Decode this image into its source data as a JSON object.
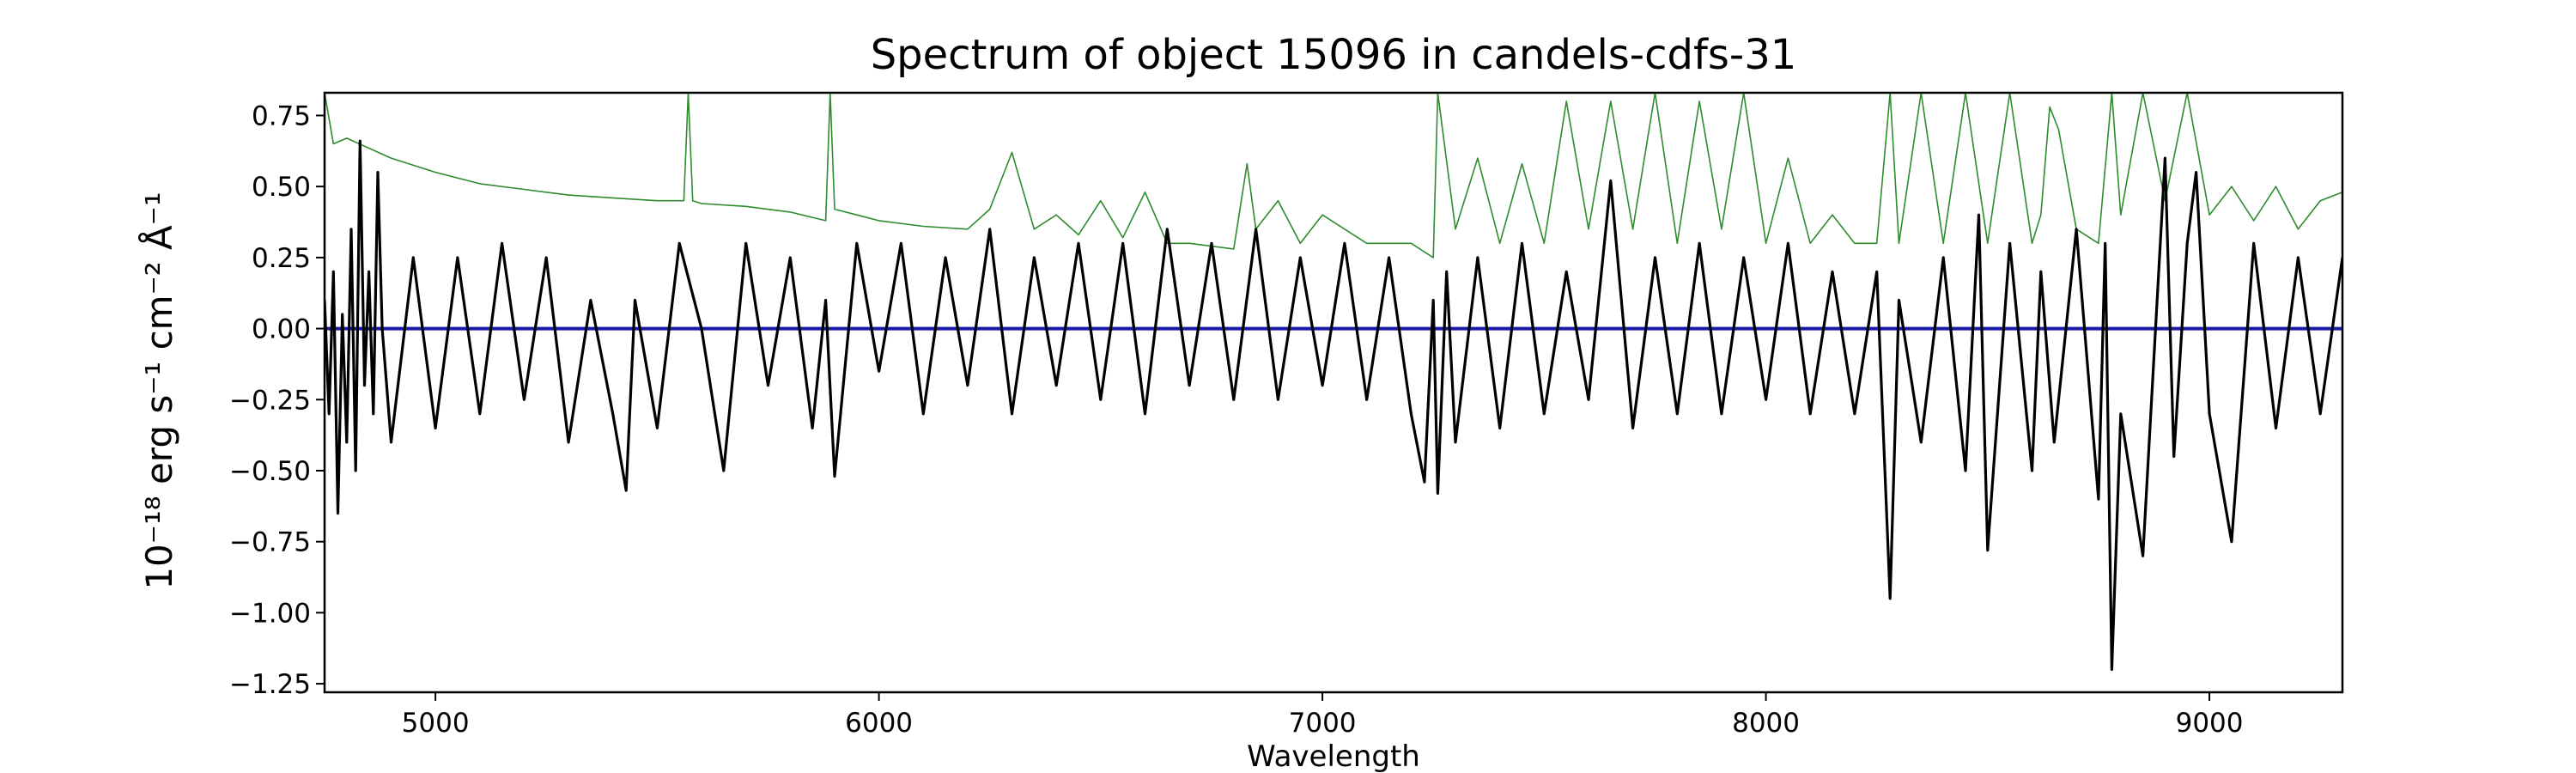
{
  "chart_data": {
    "type": "line",
    "title": "Spectrum of object 15096 in candels-cdfs-31",
    "xlabel": "Wavelength",
    "ylabel": "10⁻¹⁸ erg s⁻¹ cm⁻² Å⁻¹",
    "xlim": [
      4750,
      9300
    ],
    "ylim": [
      -1.28,
      0.83
    ],
    "xticks": [
      5000,
      6000,
      7000,
      8000,
      9000
    ],
    "xtick_labels": [
      "5000",
      "6000",
      "7000",
      "8000",
      "9000"
    ],
    "yticks": [
      0.75,
      0.5,
      0.25,
      0.0,
      -0.25,
      -0.5,
      -0.75,
      -1.0,
      -1.25
    ],
    "ytick_labels": [
      "0.75",
      "0.50",
      "0.25",
      "0.00",
      "−0.25",
      "−0.50",
      "−0.75",
      "−1.00",
      "−1.25"
    ],
    "grid": false,
    "legend": "none",
    "series": [
      {
        "role": "flux",
        "color": "#000000",
        "x": [
          4750,
          4760,
          4770,
          4780,
          4790,
          4800,
          4810,
          4820,
          4830,
          4840,
          4850,
          4860,
          4870,
          4880,
          4900,
          4950,
          5000,
          5050,
          5100,
          5150,
          5200,
          5250,
          5300,
          5350,
          5400,
          5430,
          5450,
          5500,
          5550,
          5600,
          5650,
          5700,
          5750,
          5800,
          5850,
          5880,
          5900,
          5950,
          6000,
          6050,
          6100,
          6150,
          6200,
          6250,
          6300,
          6350,
          6400,
          6450,
          6500,
          6550,
          6600,
          6650,
          6700,
          6750,
          6800,
          6850,
          6900,
          6950,
          7000,
          7050,
          7100,
          7150,
          7200,
          7230,
          7250,
          7260,
          7280,
          7300,
          7350,
          7400,
          7450,
          7500,
          7550,
          7600,
          7650,
          7700,
          7750,
          7800,
          7850,
          7900,
          7950,
          8000,
          8050,
          8100,
          8150,
          8200,
          8250,
          8280,
          8300,
          8350,
          8400,
          8450,
          8480,
          8500,
          8550,
          8600,
          8620,
          8650,
          8700,
          8750,
          8765,
          8780,
          8800,
          8850,
          8900,
          8920,
          8950,
          8970,
          9000,
          9050,
          9100,
          9150,
          9200,
          9250,
          9300
        ],
        "y": [
          0.1,
          -0.3,
          0.2,
          -0.65,
          0.05,
          -0.4,
          0.35,
          -0.5,
          0.66,
          -0.2,
          0.2,
          -0.3,
          0.55,
          0.0,
          -0.4,
          0.25,
          -0.35,
          0.25,
          -0.3,
          0.3,
          -0.25,
          0.25,
          -0.4,
          0.1,
          -0.3,
          -0.57,
          0.1,
          -0.35,
          0.3,
          0.0,
          -0.5,
          0.3,
          -0.2,
          0.25,
          -0.35,
          0.1,
          -0.52,
          0.3,
          -0.15,
          0.3,
          -0.3,
          0.25,
          -0.2,
          0.35,
          -0.3,
          0.25,
          -0.2,
          0.3,
          -0.25,
          0.3,
          -0.3,
          0.35,
          -0.2,
          0.3,
          -0.25,
          0.35,
          -0.25,
          0.25,
          -0.2,
          0.3,
          -0.25,
          0.25,
          -0.3,
          -0.54,
          0.1,
          -0.58,
          0.2,
          -0.4,
          0.25,
          -0.35,
          0.3,
          -0.3,
          0.2,
          -0.25,
          0.52,
          -0.35,
          0.25,
          -0.3,
          0.3,
          -0.3,
          0.25,
          -0.25,
          0.3,
          -0.3,
          0.2,
          -0.3,
          0.2,
          -0.95,
          0.1,
          -0.4,
          0.25,
          -0.5,
          0.4,
          -0.78,
          0.3,
          -0.5,
          0.2,
          -0.4,
          0.35,
          -0.6,
          0.3,
          -1.2,
          -0.3,
          -0.8,
          0.6,
          -0.45,
          0.3,
          0.55,
          -0.3,
          -0.75,
          0.3,
          -0.35,
          0.25,
          -0.3,
          0.25
        ]
      },
      {
        "role": "error",
        "color": "#2e8b2e",
        "x": [
          4750,
          4770,
          4800,
          4900,
          5000,
          5100,
          5200,
          5300,
          5400,
          5500,
          5560,
          5570,
          5580,
          5600,
          5700,
          5800,
          5880,
          5890,
          5900,
          5950,
          6000,
          6100,
          6200,
          6250,
          6300,
          6350,
          6400,
          6450,
          6500,
          6550,
          6600,
          6650,
          6700,
          6800,
          6830,
          6850,
          6900,
          6950,
          7000,
          7100,
          7200,
          7250,
          7260,
          7300,
          7350,
          7400,
          7450,
          7500,
          7550,
          7600,
          7650,
          7700,
          7750,
          7800,
          7850,
          7900,
          7950,
          8000,
          8050,
          8100,
          8150,
          8200,
          8250,
          8280,
          8300,
          8350,
          8400,
          8450,
          8500,
          8550,
          8600,
          8620,
          8640,
          8660,
          8700,
          8750,
          8780,
          8800,
          8850,
          8900,
          8950,
          9000,
          9050,
          9100,
          9150,
          9200,
          9250,
          9300
        ],
        "y": [
          0.83,
          0.65,
          0.67,
          0.6,
          0.55,
          0.51,
          0.49,
          0.47,
          0.46,
          0.45,
          0.45,
          0.83,
          0.45,
          0.44,
          0.43,
          0.41,
          0.38,
          0.83,
          0.42,
          0.4,
          0.38,
          0.36,
          0.35,
          0.42,
          0.62,
          0.35,
          0.4,
          0.33,
          0.45,
          0.32,
          0.48,
          0.3,
          0.3,
          0.28,
          0.58,
          0.35,
          0.45,
          0.3,
          0.4,
          0.3,
          0.3,
          0.25,
          0.83,
          0.35,
          0.6,
          0.3,
          0.58,
          0.3,
          0.8,
          0.35,
          0.8,
          0.35,
          0.83,
          0.3,
          0.8,
          0.35,
          0.83,
          0.3,
          0.6,
          0.3,
          0.4,
          0.3,
          0.3,
          0.83,
          0.3,
          0.83,
          0.3,
          0.83,
          0.3,
          0.83,
          0.3,
          0.4,
          0.78,
          0.7,
          0.35,
          0.3,
          0.83,
          0.4,
          0.83,
          0.45,
          0.83,
          0.4,
          0.5,
          0.38,
          0.5,
          0.35,
          0.45,
          0.48
        ]
      },
      {
        "role": "zero",
        "color": "#1a1aa8",
        "x": [
          4750,
          9300
        ],
        "y": [
          0.0,
          0.0
        ]
      }
    ]
  }
}
